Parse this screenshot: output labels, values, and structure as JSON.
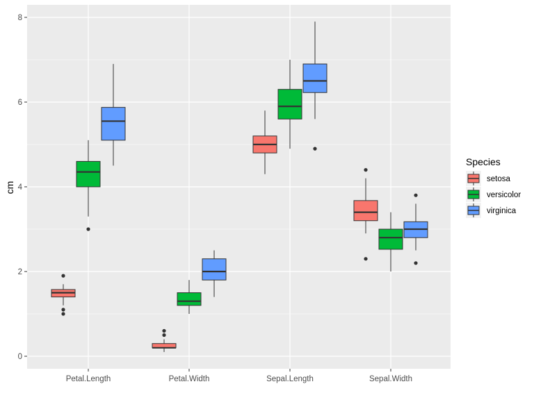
{
  "chart_data": {
    "type": "boxplot",
    "title": "",
    "xlabel": "",
    "ylabel": "cm",
    "ylim": [
      -0.2,
      8.3
    ],
    "yticks": [
      0,
      2,
      4,
      6,
      8
    ],
    "categories": [
      "Petal.Length",
      "Petal.Width",
      "Sepal.Length",
      "Sepal.Width"
    ],
    "legend": {
      "title": "Species",
      "position": "right"
    },
    "series": [
      {
        "name": "setosa",
        "color": "#F8766D",
        "boxes": [
          {
            "category": "Petal.Length",
            "lower_whisker": 1.2,
            "q1": 1.4,
            "median": 1.5,
            "q3": 1.575,
            "upper_whisker": 1.7,
            "outliers": [
              1.0,
              1.1,
              1.9
            ]
          },
          {
            "category": "Petal.Width",
            "lower_whisker": 0.1,
            "q1": 0.2,
            "median": 0.2,
            "q3": 0.3,
            "upper_whisker": 0.4,
            "outliers": [
              0.5,
              0.6
            ]
          },
          {
            "category": "Sepal.Length",
            "lower_whisker": 4.3,
            "q1": 4.8,
            "median": 5.0,
            "q3": 5.2,
            "upper_whisker": 5.8,
            "outliers": []
          },
          {
            "category": "Sepal.Width",
            "lower_whisker": 2.9,
            "q1": 3.2,
            "median": 3.4,
            "q3": 3.675,
            "upper_whisker": 4.2,
            "outliers": [
              2.3,
              4.4
            ]
          }
        ]
      },
      {
        "name": "versicolor",
        "color": "#00BA38",
        "boxes": [
          {
            "category": "Petal.Length",
            "lower_whisker": 3.3,
            "q1": 4.0,
            "median": 4.35,
            "q3": 4.6,
            "upper_whisker": 5.1,
            "outliers": [
              3.0
            ]
          },
          {
            "category": "Petal.Width",
            "lower_whisker": 1.0,
            "q1": 1.2,
            "median": 1.3,
            "q3": 1.5,
            "upper_whisker": 1.8,
            "outliers": []
          },
          {
            "category": "Sepal.Length",
            "lower_whisker": 4.9,
            "q1": 5.6,
            "median": 5.9,
            "q3": 6.3,
            "upper_whisker": 7.0,
            "outliers": []
          },
          {
            "category": "Sepal.Width",
            "lower_whisker": 2.0,
            "q1": 2.525,
            "median": 2.8,
            "q3": 3.0,
            "upper_whisker": 3.4,
            "outliers": []
          }
        ]
      },
      {
        "name": "virginica",
        "color": "#619CFF",
        "boxes": [
          {
            "category": "Petal.Length",
            "lower_whisker": 4.5,
            "q1": 5.1,
            "median": 5.55,
            "q3": 5.875,
            "upper_whisker": 6.9,
            "outliers": []
          },
          {
            "category": "Petal.Width",
            "lower_whisker": 1.4,
            "q1": 1.8,
            "median": 2.0,
            "q3": 2.3,
            "upper_whisker": 2.5,
            "outliers": []
          },
          {
            "category": "Sepal.Length",
            "lower_whisker": 5.6,
            "q1": 6.225,
            "median": 6.5,
            "q3": 6.9,
            "upper_whisker": 7.9,
            "outliers": [
              4.9
            ]
          },
          {
            "category": "Sepal.Width",
            "lower_whisker": 2.5,
            "q1": 2.8,
            "median": 3.0,
            "q3": 3.175,
            "upper_whisker": 3.6,
            "outliers": [
              2.2,
              3.8
            ]
          }
        ]
      }
    ],
    "grid": true,
    "panel_background": "#EBEBEB",
    "grid_color": "#FFFFFF"
  }
}
